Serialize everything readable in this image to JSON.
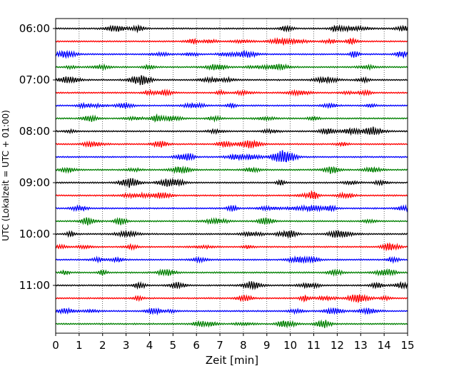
{
  "chart_data": {
    "type": "line",
    "title": "",
    "xlabel": "Zeit  [min]",
    "ylabel": "UTC (Lokalzeit = UTC + 01:00)",
    "xlim": [
      0,
      15
    ],
    "x_ticks": [
      "0",
      "1",
      "2",
      "3",
      "4",
      "5",
      "6",
      "7",
      "8",
      "9",
      "10",
      "11",
      "12",
      "13",
      "14",
      "15"
    ],
    "y_tick_labels": [
      "06:00",
      "07:00",
      "08:00",
      "09:00",
      "10:00",
      "11:00"
    ],
    "trace_interval_minutes": 15,
    "traces_per_hour": 4,
    "first_trace": "06:00",
    "trace_count": 24,
    "trace_colors": [
      "#000000",
      "#ff0000",
      "#0000ff",
      "#008000"
    ],
    "vertical_grid": true,
    "grid_style": "dotted",
    "legend": "none"
  }
}
